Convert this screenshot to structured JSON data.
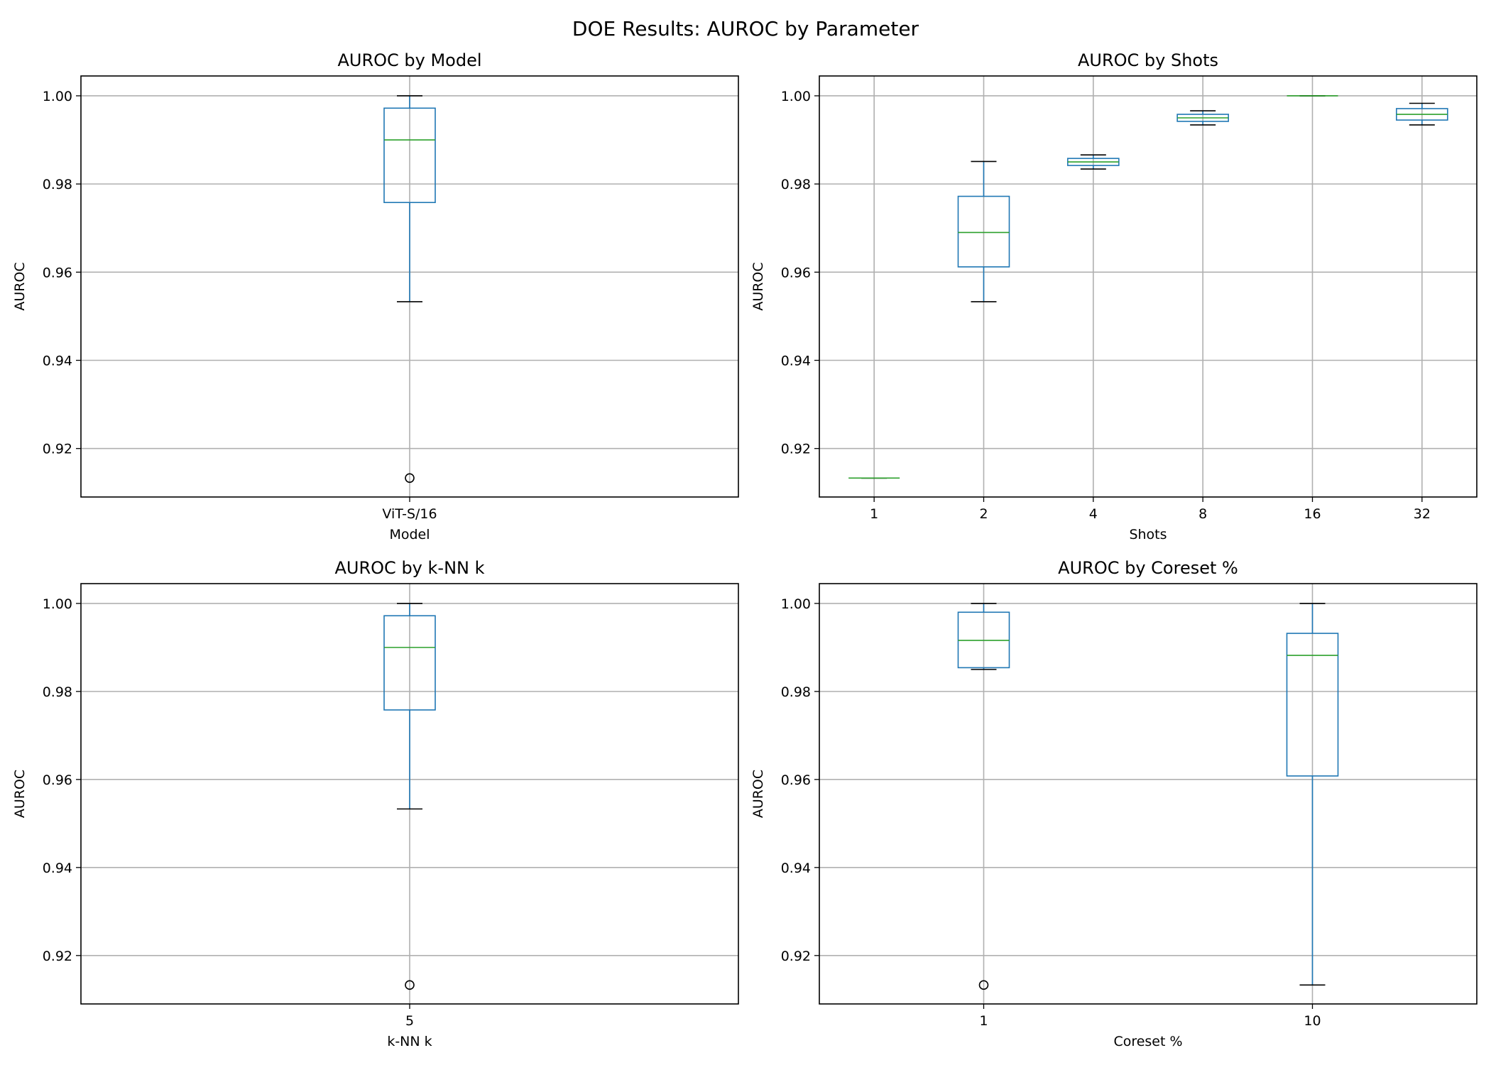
{
  "title": "DOE Results: AUROC by Parameter",
  "colors": {
    "box": "#1f77b4",
    "median": "#2ca02c",
    "whisker_cap": "#000000",
    "grid": "#b0b0b0",
    "axes": "#000000"
  },
  "chart_data": [
    {
      "type": "box",
      "title": "AUROC by Model",
      "xlabel": "Model",
      "ylabel": "AUROC",
      "ylim": [
        0.909,
        1.0045
      ],
      "yticks": [
        "0.92",
        "0.94",
        "0.96",
        "0.98",
        "1.00"
      ],
      "grid": true,
      "boxes": [
        {
          "category": "ViT-S/16",
          "whislo": 0.9533,
          "q1": 0.9758,
          "median": 0.99,
          "q3": 0.9972,
          "whishi": 1.0,
          "fliers": [
            0.9133
          ]
        }
      ]
    },
    {
      "type": "box",
      "title": "AUROC by Shots",
      "xlabel": "Shots",
      "ylabel": "AUROC",
      "ylim": [
        0.909,
        1.0045
      ],
      "yticks": [
        "0.92",
        "0.94",
        "0.96",
        "0.98",
        "1.00"
      ],
      "grid": true,
      "boxes": [
        {
          "category": "1",
          "whislo": 0.9133,
          "q1": 0.9133,
          "median": 0.9133,
          "q3": 0.9133,
          "whishi": 0.9133,
          "fliers": []
        },
        {
          "category": "2",
          "whislo": 0.9533,
          "q1": 0.9612,
          "median": 0.969,
          "q3": 0.9772,
          "whishi": 0.9851,
          "fliers": []
        },
        {
          "category": "4",
          "whislo": 0.9834,
          "q1": 0.9842,
          "median": 0.985,
          "q3": 0.9858,
          "whishi": 0.9866,
          "fliers": []
        },
        {
          "category": "8",
          "whislo": 0.9934,
          "q1": 0.9942,
          "median": 0.995,
          "q3": 0.9958,
          "whishi": 0.9966,
          "fliers": []
        },
        {
          "category": "16",
          "whislo": 1.0,
          "q1": 1.0,
          "median": 1.0,
          "q3": 1.0,
          "whishi": 1.0,
          "fliers": []
        },
        {
          "category": "32",
          "whislo": 0.9934,
          "q1": 0.9945,
          "median": 0.9958,
          "q3": 0.9971,
          "whishi": 0.9983,
          "fliers": []
        }
      ]
    },
    {
      "type": "box",
      "title": "AUROC by k-NN k",
      "xlabel": "k-NN k",
      "ylabel": "AUROC",
      "ylim": [
        0.909,
        1.0045
      ],
      "yticks": [
        "0.92",
        "0.94",
        "0.96",
        "0.98",
        "1.00"
      ],
      "grid": true,
      "boxes": [
        {
          "category": "5",
          "whislo": 0.9533,
          "q1": 0.9758,
          "median": 0.99,
          "q3": 0.9972,
          "whishi": 1.0,
          "fliers": [
            0.9133
          ]
        }
      ]
    },
    {
      "type": "box",
      "title": "AUROC by Coreset %",
      "xlabel": "Coreset %",
      "ylabel": "AUROC",
      "ylim": [
        0.909,
        1.0045
      ],
      "yticks": [
        "0.92",
        "0.94",
        "0.96",
        "0.98",
        "1.00"
      ],
      "grid": true,
      "boxes": [
        {
          "category": "1",
          "whislo": 0.985,
          "q1": 0.9854,
          "median": 0.9916,
          "q3": 0.998,
          "whishi": 1.0,
          "fliers": [
            0.9133
          ]
        },
        {
          "category": "10",
          "whislo": 0.9133,
          "q1": 0.9608,
          "median": 0.9882,
          "q3": 0.9932,
          "whishi": 1.0,
          "fliers": []
        }
      ]
    }
  ]
}
